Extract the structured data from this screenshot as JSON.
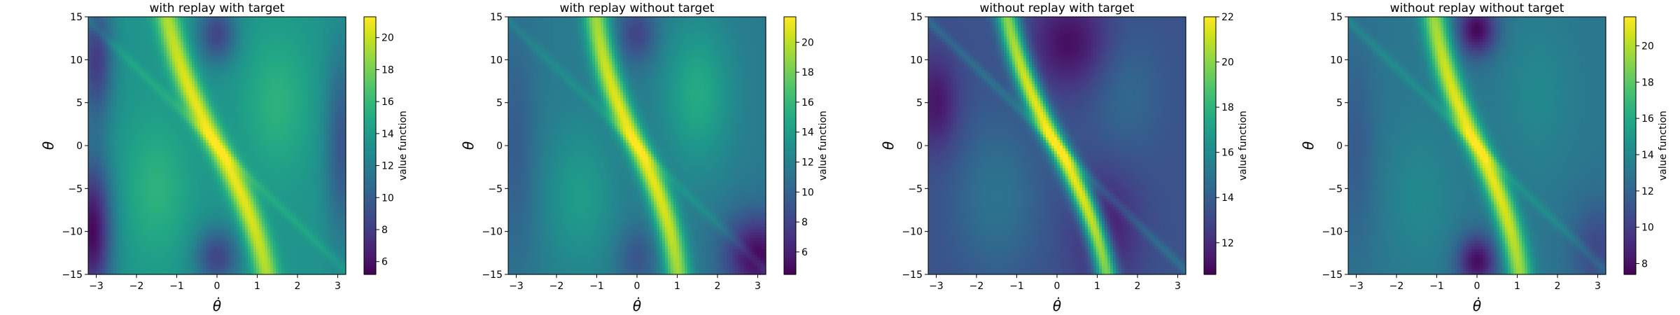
{
  "figure": {
    "panels_count": 4
  },
  "chart_data": [
    {
      "type": "heatmap",
      "title": "with replay with target",
      "xlabel": "θ̇",
      "ylabel": "θ",
      "xlim": [
        -3.2,
        3.2
      ],
      "ylim": [
        -15,
        15
      ],
      "xticks": [
        -3,
        -2,
        -1,
        0,
        1,
        2,
        3
      ],
      "yticks": [
        -15,
        -10,
        -5,
        0,
        5,
        10,
        15
      ],
      "colorbar_label": "value function",
      "colorbar_range": [
        5.2,
        21.3
      ],
      "colorbar_ticks": [
        6,
        8,
        10,
        12,
        14,
        16,
        18,
        20
      ],
      "colormap": "viridis",
      "base_value": 13.5,
      "ridge": {
        "center_x_at_y0": 0.0,
        "slope": -0.12,
        "curvature": 0.0025,
        "width": 0.22,
        "peak": 21.0
      },
      "features": [
        {
          "x": -3.1,
          "y": -10,
          "sx": 0.35,
          "sy": 6,
          "value": 5.5
        },
        {
          "x": -3.0,
          "y": 10,
          "sx": 0.3,
          "sy": 5,
          "value": 8.0
        },
        {
          "x": 0.0,
          "y": 13,
          "sx": 0.35,
          "sy": 2.5,
          "value": 8.5
        },
        {
          "x": 0.0,
          "y": -13,
          "sx": 0.4,
          "sy": 2.5,
          "value": 8.5
        },
        {
          "x": 3.1,
          "y": 0,
          "sx": 0.3,
          "sy": 8,
          "value": 9.5
        },
        {
          "x": -1.5,
          "y": -5,
          "sx": 0.6,
          "sy": 6,
          "value": 15.5
        },
        {
          "x": 1.5,
          "y": 5,
          "sx": 0.6,
          "sy": 6,
          "value": 15.5
        }
      ]
    },
    {
      "type": "heatmap",
      "title": "with replay without target",
      "xlabel": "θ̇",
      "ylabel": "θ",
      "xlim": [
        -3.2,
        3.2
      ],
      "ylim": [
        -15,
        15
      ],
      "xticks": [
        -3,
        -2,
        -1,
        0,
        1,
        2,
        3
      ],
      "yticks": [
        -15,
        -10,
        -5,
        0,
        5,
        10,
        15
      ],
      "colorbar_label": "value function",
      "colorbar_range": [
        4.5,
        21.7
      ],
      "colorbar_ticks": [
        6,
        8,
        10,
        12,
        14,
        16,
        18,
        20
      ],
      "colormap": "viridis",
      "base_value": 11.5,
      "ridge": {
        "center_x_at_y0": 0.0,
        "slope": -0.11,
        "curvature": 0.0028,
        "width": 0.22,
        "peak": 21.3
      },
      "features": [
        {
          "x": 3.0,
          "y": -13,
          "sx": 0.6,
          "sy": 3.5,
          "value": 4.8
        },
        {
          "x": -3.0,
          "y": 0,
          "sx": 0.35,
          "sy": 10,
          "value": 9.5
        },
        {
          "x": 0.0,
          "y": 13,
          "sx": 0.35,
          "sy": 2.5,
          "value": 8.0
        },
        {
          "x": 0.0,
          "y": -13,
          "sx": 0.35,
          "sy": 2.5,
          "value": 9.0
        },
        {
          "x": 1.5,
          "y": 6,
          "sx": 0.6,
          "sy": 6,
          "value": 15.0
        },
        {
          "x": -1.4,
          "y": -6,
          "sx": 0.6,
          "sy": 6,
          "value": 14.0
        }
      ]
    },
    {
      "type": "heatmap",
      "title": "without replay with target",
      "xlabel": "θ̇",
      "ylabel": "θ",
      "xlim": [
        -3.2,
        3.2
      ],
      "ylim": [
        -15,
        15
      ],
      "xticks": [
        -3,
        -2,
        -1,
        0,
        1,
        2,
        3
      ],
      "yticks": [
        -15,
        -10,
        -5,
        0,
        5,
        10,
        15
      ],
      "colorbar_label": "value function",
      "colorbar_range": [
        10.6,
        22.0
      ],
      "colorbar_ticks": [
        12,
        14,
        16,
        18,
        20,
        22
      ],
      "colormap": "viridis",
      "base_value": 13.5,
      "ridge": {
        "center_x_at_y0": 0.0,
        "slope": -0.12,
        "curvature": 0.0025,
        "width": 0.2,
        "peak": 21.8
      },
      "features": [
        {
          "x": 0.3,
          "y": 12,
          "sx": 0.7,
          "sy": 4,
          "value": 11.0
        },
        {
          "x": -3.0,
          "y": 5,
          "sx": 0.4,
          "sy": 4,
          "value": 11.2
        },
        {
          "x": 1.2,
          "y": -10,
          "sx": 0.6,
          "sy": 5,
          "value": 11.5
        },
        {
          "x": -1.5,
          "y": -6,
          "sx": 0.7,
          "sy": 6,
          "value": 15.0
        },
        {
          "x": 1.7,
          "y": 6,
          "sx": 0.6,
          "sy": 5,
          "value": 14.5
        }
      ]
    },
    {
      "type": "heatmap",
      "title": "without replay without target",
      "xlabel": "θ̇",
      "ylabel": "θ",
      "xlim": [
        -3.2,
        3.2
      ],
      "ylim": [
        -15,
        15
      ],
      "xticks": [
        -3,
        -2,
        -1,
        0,
        1,
        2,
        3
      ],
      "yticks": [
        -15,
        -10,
        -5,
        0,
        5,
        10,
        15
      ],
      "colorbar_label": "value function",
      "colorbar_range": [
        7.4,
        21.6
      ],
      "colorbar_ticks": [
        8,
        10,
        12,
        14,
        16,
        18,
        20
      ],
      "colormap": "viridis",
      "base_value": 13.0,
      "ridge": {
        "center_x_at_y0": 0.0,
        "slope": -0.11,
        "curvature": 0.0026,
        "width": 0.22,
        "peak": 21.3
      },
      "features": [
        {
          "x": 0.0,
          "y": 13.5,
          "sx": 0.35,
          "sy": 2.2,
          "value": 7.6
        },
        {
          "x": 0.0,
          "y": -13.5,
          "sx": 0.35,
          "sy": 2.2,
          "value": 7.8
        },
        {
          "x": 3.0,
          "y": -12,
          "sx": 0.5,
          "sy": 4,
          "value": 10.5
        },
        {
          "x": -3.0,
          "y": 0,
          "sx": 0.35,
          "sy": 9,
          "value": 11.5
        },
        {
          "x": -1.4,
          "y": -6,
          "sx": 0.6,
          "sy": 6,
          "value": 14.0
        },
        {
          "x": 1.5,
          "y": 6,
          "sx": 0.6,
          "sy": 6,
          "value": 14.0
        }
      ]
    }
  ]
}
